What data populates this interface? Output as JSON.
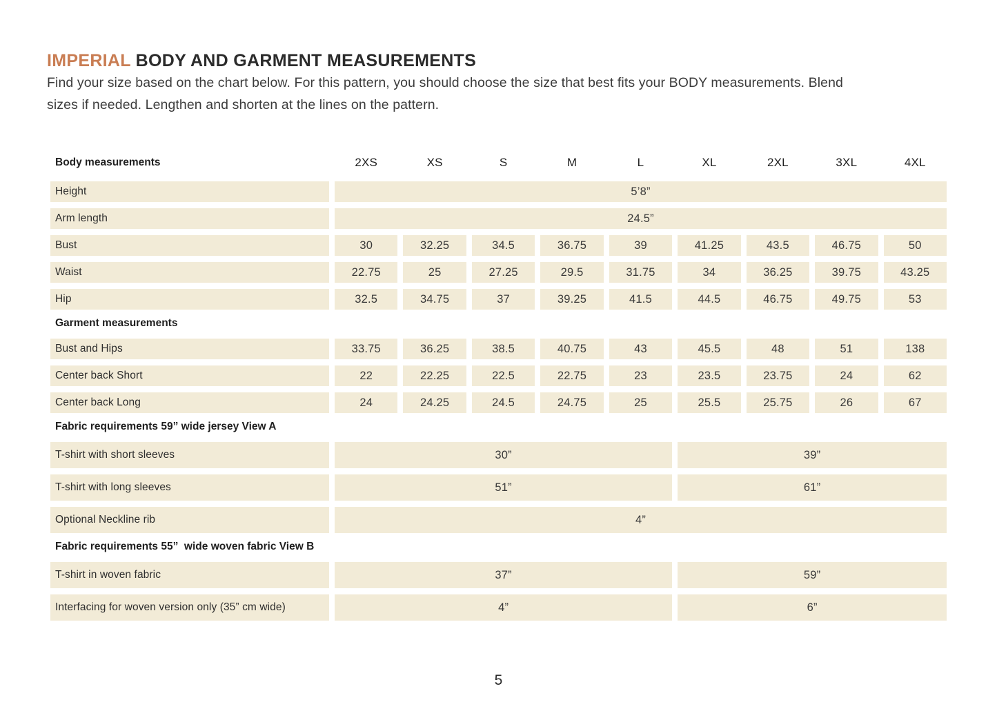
{
  "page": {
    "title_highlight": "IMPERIAL",
    "title_rest": " BODY AND GARMENT MEASUREMENTS",
    "intro": "Find your size based on the chart below. For this pattern, you should choose the size that best fits your BODY measurements. Blend sizes if needed. Lengthen and shorten at the lines on the pattern.",
    "page_number": "5"
  },
  "colors": {
    "accent": "#c97d53",
    "cell_bg": "#f2ebd7",
    "text": "#2f2f2f"
  },
  "table": {
    "header": {
      "label": "Body measurements",
      "sizes": [
        "2XS",
        "XS",
        "S",
        "M",
        "L",
        "XL",
        "2XL",
        "3XL",
        "4XL"
      ]
    },
    "rows": [
      {
        "type": "span-all",
        "label": "Height",
        "value": "5’8”"
      },
      {
        "type": "span-all",
        "label": "Arm length",
        "value": "24.5”"
      },
      {
        "type": "data",
        "label": "Bust",
        "values": [
          "30",
          "32.25",
          "34.5",
          "36.75",
          "39",
          "41.25",
          "43.5",
          "46.75",
          "50"
        ]
      },
      {
        "type": "data",
        "label": "Waist",
        "values": [
          "22.75",
          "25",
          "27.25",
          "29.5",
          "31.75",
          "34",
          "36.25",
          "39.75",
          "43.25"
        ]
      },
      {
        "type": "data",
        "label": "Hip",
        "values": [
          "32.5",
          "34.75",
          "37",
          "39.25",
          "41.5",
          "44.5",
          "46.75",
          "49.75",
          "53"
        ]
      },
      {
        "type": "section",
        "label": "Garment measurements"
      },
      {
        "type": "data",
        "label": "Bust and Hips",
        "values": [
          "33.75",
          "36.25",
          "38.5",
          "40.75",
          "43",
          "45.5",
          "48",
          "51",
          "138"
        ]
      },
      {
        "type": "data",
        "label": "Center back Short",
        "values": [
          "22",
          "22.25",
          "22.5",
          "22.75",
          "23",
          "23.5",
          "23.75",
          "24",
          "62"
        ]
      },
      {
        "type": "data",
        "label": "Center back Long",
        "values": [
          "24",
          "24.25",
          "24.5",
          "24.75",
          "25",
          "25.5",
          "25.75",
          "26",
          "67"
        ]
      },
      {
        "type": "section",
        "label": "Fabric requirements 59” wide jersey View A"
      },
      {
        "type": "span-2",
        "label": "T-shirt with short sleeves",
        "values": [
          "30”",
          "39”"
        ],
        "tall": true
      },
      {
        "type": "span-2",
        "label": "T-shirt with long sleeves",
        "values": [
          "51”",
          "61”"
        ],
        "tall": true
      },
      {
        "type": "span-all",
        "label": "Optional Neckline rib",
        "value": "4”",
        "tall": true
      },
      {
        "type": "section",
        "label": "Fabric requirements 55”  wide woven fabric View B"
      },
      {
        "type": "span-2",
        "label": "T-shirt in woven fabric",
        "values": [
          "37”",
          "59”"
        ],
        "tall": true
      },
      {
        "type": "span-2",
        "label": "Interfacing for woven version only (35” cm wide)",
        "values": [
          "4”",
          "6”"
        ],
        "tall": true
      }
    ]
  }
}
